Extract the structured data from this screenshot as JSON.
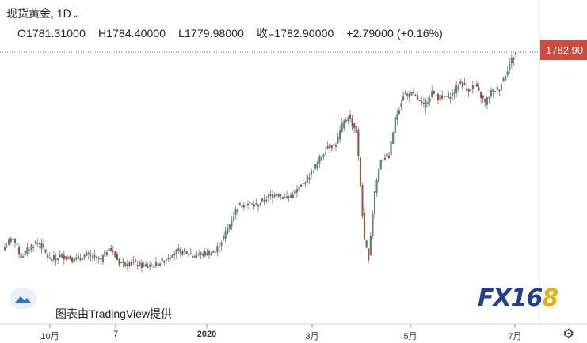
{
  "header": {
    "title": "现货黄金, 1D",
    "ohlc": {
      "open": "O1781.31000",
      "high": "H1784.40000",
      "low": "L1779.98000",
      "close": "收=1782.90000",
      "change": "+2.79000 (+0.16%)"
    }
  },
  "last_price_label": "1782.90",
  "attribution": "图表由TradingView提供",
  "watermark": {
    "prefix": "FX16",
    "suffix": "8"
  },
  "icons": {
    "tv_logo": "tradingview-logo-icon",
    "settings": "gear-icon",
    "dropdown": "chevron-down-icon"
  },
  "colors": {
    "up": "#4f8f6a",
    "down": "#b7463a",
    "price_tag": "#cf4b3e",
    "price_line": "#cf4b3e"
  },
  "chart_data": {
    "type": "candlestick",
    "instrument": "现货黄金",
    "interval": "1D",
    "x_ticks": [
      "10月",
      "7",
      "2020",
      "3月",
      "5月",
      "7月"
    ],
    "ylim": [
      1440,
      1800
    ],
    "grid": false,
    "last_close": 1782.9,
    "series_anchors": [
      [
        0,
        1485
      ],
      [
        4,
        1500
      ],
      [
        8,
        1470
      ],
      [
        14,
        1490
      ],
      [
        17,
        1492
      ],
      [
        22,
        1465
      ],
      [
        28,
        1472
      ],
      [
        35,
        1466
      ],
      [
        40,
        1473
      ],
      [
        47,
        1465
      ],
      [
        51,
        1485
      ],
      [
        56,
        1462
      ],
      [
        64,
        1460
      ],
      [
        69,
        1455
      ],
      [
        74,
        1458
      ],
      [
        80,
        1470
      ],
      [
        84,
        1478
      ],
      [
        88,
        1478
      ],
      [
        92,
        1472
      ],
      [
        98,
        1475
      ],
      [
        103,
        1478
      ],
      [
        107,
        1500
      ],
      [
        110,
        1520
      ],
      [
        114,
        1548
      ],
      [
        118,
        1552
      ],
      [
        123,
        1548
      ],
      [
        128,
        1560
      ],
      [
        133,
        1568
      ],
      [
        137,
        1560
      ],
      [
        141,
        1565
      ],
      [
        146,
        1582
      ],
      [
        152,
        1608
      ],
      [
        158,
        1640
      ],
      [
        162,
        1642
      ],
      [
        165,
        1670
      ],
      [
        168,
        1686
      ],
      [
        172,
        1662
      ],
      [
        174,
        1580
      ],
      [
        176,
        1492
      ],
      [
        178,
        1470
      ],
      [
        181,
        1570
      ],
      [
        184,
        1620
      ],
      [
        188,
        1625
      ],
      [
        191,
        1680
      ],
      [
        195,
        1718
      ],
      [
        200,
        1718
      ],
      [
        205,
        1700
      ],
      [
        209,
        1722
      ],
      [
        213,
        1712
      ],
      [
        219,
        1718
      ],
      [
        223,
        1738
      ],
      [
        226,
        1725
      ],
      [
        230,
        1732
      ],
      [
        235,
        1705
      ],
      [
        238,
        1722
      ],
      [
        242,
        1728
      ],
      [
        247,
        1765
      ],
      [
        250,
        1783
      ]
    ]
  }
}
